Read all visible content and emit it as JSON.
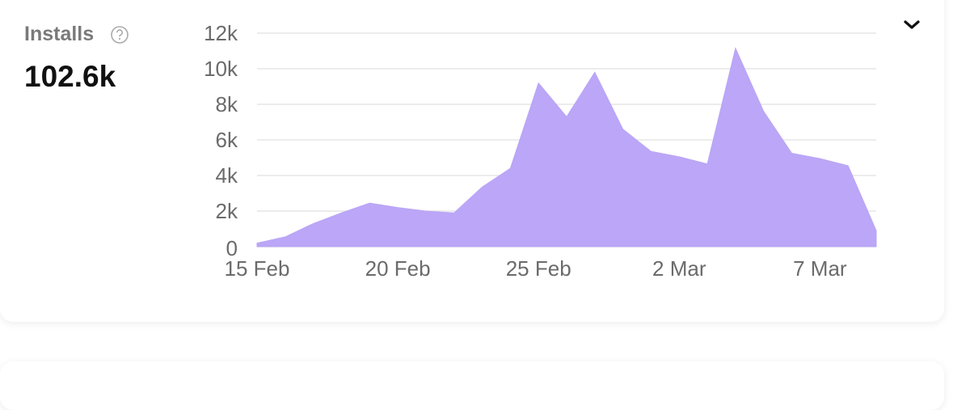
{
  "header": {
    "title": "Installs",
    "total": "102.6k"
  },
  "chart_data": {
    "type": "area",
    "categories": [
      "15 Feb",
      null,
      null,
      null,
      null,
      "20 Feb",
      null,
      null,
      null,
      null,
      "25 Feb",
      null,
      null,
      null,
      null,
      "2 Mar",
      null,
      null,
      null,
      null,
      "7 Mar",
      null,
      null
    ],
    "series": [
      {
        "name": "Installs",
        "color": "#bba6f7",
        "values": [
          200,
          550,
          1300,
          1900,
          2450,
          2200,
          2000,
          1900,
          3350,
          4400,
          9200,
          7300,
          9800,
          6600,
          5350,
          5050,
          4650,
          11150,
          7600,
          5250,
          4950,
          4550,
          900
        ]
      }
    ],
    "ylim": [
      0,
      12000
    ],
    "yticks": [
      {
        "value": 0,
        "label": "0"
      },
      {
        "value": 2000,
        "label": "2k"
      },
      {
        "value": 4000,
        "label": "4k"
      },
      {
        "value": 6000,
        "label": "6k"
      },
      {
        "value": 8000,
        "label": "8k"
      },
      {
        "value": 10000,
        "label": "10k"
      },
      {
        "value": 12000,
        "label": "12k"
      }
    ],
    "grid": true
  }
}
